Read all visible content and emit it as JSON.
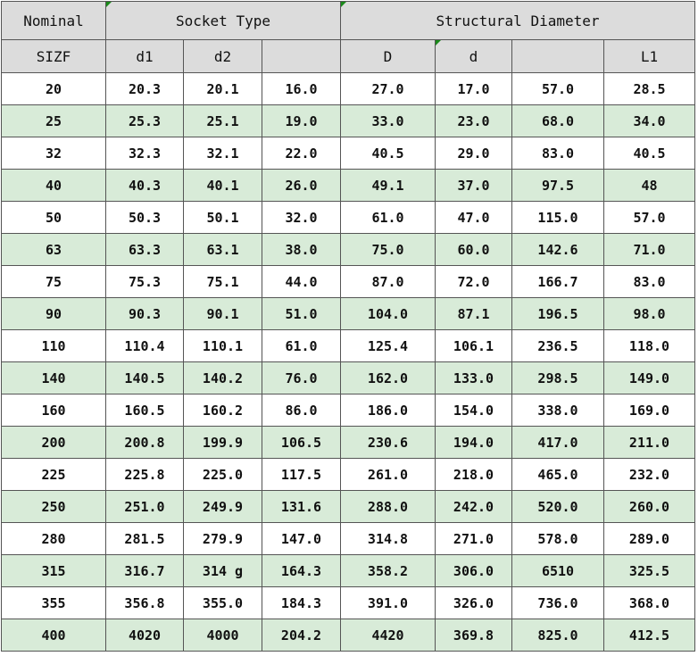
{
  "header": {
    "nominal": "Nominal",
    "socket_type": "Socket Type",
    "structural_diameter": "Structural Diameter",
    "columns": [
      "SIZF",
      "d1",
      "d2",
      "",
      "D",
      "d",
      "",
      "L1"
    ]
  },
  "colors": {
    "header_bg": "#dcdcdc",
    "alt_row_bg": "#d8ebd8",
    "comment_marker": "#1a8a1a"
  },
  "rows": [
    [
      "20",
      "20.3",
      "20.1",
      "16.0",
      "27.0",
      "17.0",
      "57.0",
      "28.5"
    ],
    [
      "25",
      "25.3",
      "25.1",
      "19.0",
      "33.0",
      "23.0",
      "68.0",
      "34.0"
    ],
    [
      "32",
      "32.3",
      "32.1",
      "22.0",
      "40.5",
      "29.0",
      "83.0",
      "40.5"
    ],
    [
      "40",
      "40.3",
      "40.1",
      "26.0",
      "49.1",
      "37.0",
      "97.5",
      "48"
    ],
    [
      "50",
      "50.3",
      "50.1",
      "32.0",
      "61.0",
      "47.0",
      "115.0",
      "57.0"
    ],
    [
      "63",
      "63.3",
      "63.1",
      "38.0",
      "75.0",
      "60.0",
      "142.6",
      "71.0"
    ],
    [
      "75",
      "75.3",
      "75.1",
      "44.0",
      "87.0",
      "72.0",
      "166.7",
      "83.0"
    ],
    [
      "90",
      "90.3",
      "90.1",
      "51.0",
      "104.0",
      "87.1",
      "196.5",
      "98.0"
    ],
    [
      "110",
      "110.4",
      "110.1",
      "61.0",
      "125.4",
      "106.1",
      "236.5",
      "118.0"
    ],
    [
      "140",
      "140.5",
      "140.2",
      "76.0",
      "162.0",
      "133.0",
      "298.5",
      "149.0"
    ],
    [
      "160",
      "160.5",
      "160.2",
      "86.0",
      "186.0",
      "154.0",
      "338.0",
      "169.0"
    ],
    [
      "200",
      "200.8",
      "199.9",
      "106.5",
      "230.6",
      "194.0",
      "417.0",
      "211.0"
    ],
    [
      "225",
      "225.8",
      "225.0",
      "117.5",
      "261.0",
      "218.0",
      "465.0",
      "232.0"
    ],
    [
      "250",
      "251.0",
      "249.9",
      "131.6",
      "288.0",
      "242.0",
      "520.0",
      "260.0"
    ],
    [
      "280",
      "281.5",
      "279.9",
      "147.0",
      "314.8",
      "271.0",
      "578.0",
      "289.0"
    ],
    [
      "315",
      "316.7",
      "314 g",
      "164.3",
      "358.2",
      "306.0",
      "6510",
      "325.5"
    ],
    [
      "355",
      "356.8",
      "355.0",
      "184.3",
      "391.0",
      "326.0",
      "736.0",
      "368.0"
    ],
    [
      "400",
      "4020",
      "4000",
      "204.2",
      "4420",
      "369.8",
      "825.0",
      "412.5"
    ]
  ]
}
